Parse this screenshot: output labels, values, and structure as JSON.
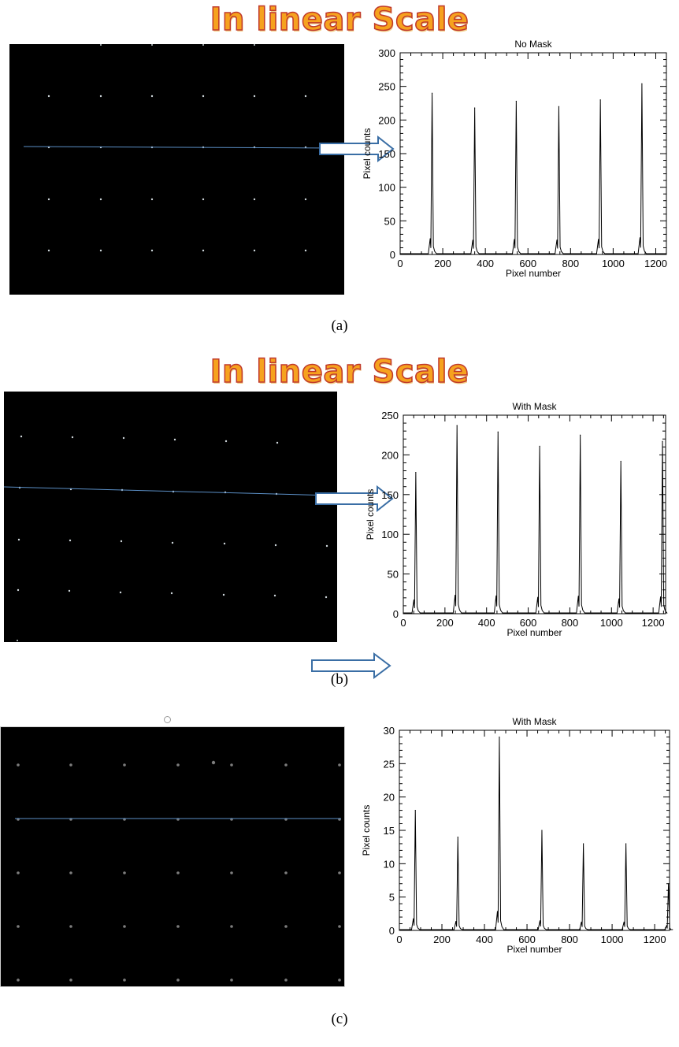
{
  "banner": "In linear Scale",
  "panels": [
    {
      "caption": "(a)",
      "chart_data": {
        "type": "line",
        "title": "No Mask",
        "xlabel": "Pixel number",
        "ylabel": "Pixel counts",
        "xlim": [
          0,
          1250
        ],
        "ylim": [
          0,
          300
        ],
        "xticks": [
          0,
          200,
          400,
          600,
          800,
          1000,
          1200
        ],
        "yticks": [
          0,
          50,
          100,
          150,
          200,
          250,
          300
        ],
        "peaks": [
          {
            "x": 150,
            "y": 240
          },
          {
            "x": 350,
            "y": 218
          },
          {
            "x": 545,
            "y": 228
          },
          {
            "x": 745,
            "y": 220
          },
          {
            "x": 940,
            "y": 230
          },
          {
            "x": 1135,
            "y": 254
          }
        ]
      }
    },
    {
      "caption": "(b)",
      "chart_data": {
        "type": "line",
        "title": "With Mask",
        "xlabel": "Pixel number",
        "ylabel": "Pixel counts",
        "xlim": [
          0,
          1260
        ],
        "ylim": [
          0,
          250
        ],
        "xticks": [
          0,
          200,
          400,
          600,
          800,
          1000,
          1200
        ],
        "yticks": [
          0,
          50,
          100,
          150,
          200,
          250
        ],
        "peaks": [
          {
            "x": 60,
            "y": 178
          },
          {
            "x": 258,
            "y": 237
          },
          {
            "x": 455,
            "y": 229
          },
          {
            "x": 655,
            "y": 211
          },
          {
            "x": 850,
            "y": 225
          },
          {
            "x": 1045,
            "y": 192
          },
          {
            "x": 1245,
            "y": 217
          }
        ]
      }
    },
    {
      "caption": "(c)",
      "chart_data": {
        "type": "line",
        "title": "With Mask",
        "xlabel": "Pixel number",
        "ylabel": "Pixel counts",
        "xlim": [
          0,
          1270
        ],
        "ylim": [
          0,
          30
        ],
        "xticks": [
          0,
          200,
          400,
          600,
          800,
          1000,
          1200
        ],
        "yticks": [
          0,
          5,
          10,
          15,
          20,
          25,
          30
        ],
        "peaks": [
          {
            "x": 75,
            "y": 18
          },
          {
            "x": 275,
            "y": 14
          },
          {
            "x": 470,
            "y": 29
          },
          {
            "x": 670,
            "y": 15
          },
          {
            "x": 865,
            "y": 13
          },
          {
            "x": 1065,
            "y": 13
          },
          {
            "x": 1265,
            "y": 7
          }
        ]
      }
    }
  ],
  "colors": {
    "banner_fill": "#f6a21e",
    "banner_stroke": "#c0392b",
    "line_blue": "#5b8fc6",
    "arrow": "#3a6ea5"
  }
}
